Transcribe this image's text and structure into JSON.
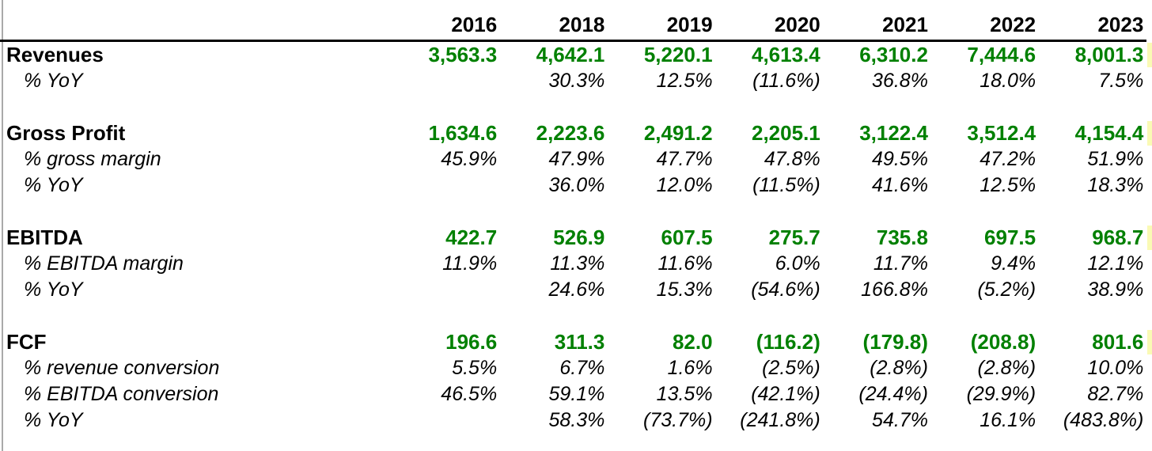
{
  "colors": {
    "value_green": "#008000",
    "highlight_yellow": "#FAFAB4",
    "rule_gray": "#A9A9A9",
    "header_line": "#000000"
  },
  "table": {
    "years": [
      "2016",
      "2018",
      "2019",
      "2020",
      "2021",
      "2022",
      "2023"
    ],
    "rows": [
      {
        "name": "revenues",
        "type": "metric",
        "label": "Revenues",
        "highlight": true,
        "values": [
          "3,563.3",
          "4,642.1",
          "5,220.1",
          "4,613.4",
          "6,310.2",
          "7,444.6",
          "8,001.3"
        ]
      },
      {
        "name": "revenues-yoy",
        "type": "pct",
        "label": "% YoY",
        "values": [
          "",
          "30.3%",
          "12.5%",
          "(11.6%)",
          "36.8%",
          "18.0%",
          "7.5%"
        ]
      },
      {
        "name": "spacer-1",
        "type": "spacer"
      },
      {
        "name": "gross-profit",
        "type": "metric",
        "label": "Gross Profit",
        "highlight": true,
        "values": [
          "1,634.6",
          "2,223.6",
          "2,491.2",
          "2,205.1",
          "3,122.4",
          "3,512.4",
          "4,154.4"
        ]
      },
      {
        "name": "gross-margin",
        "type": "pct",
        "label": "% gross margin",
        "values": [
          "45.9%",
          "47.9%",
          "47.7%",
          "47.8%",
          "49.5%",
          "47.2%",
          "51.9%"
        ]
      },
      {
        "name": "gross-profit-yoy",
        "type": "pct",
        "label": "% YoY",
        "values": [
          "",
          "36.0%",
          "12.0%",
          "(11.5%)",
          "41.6%",
          "12.5%",
          "18.3%"
        ]
      },
      {
        "name": "spacer-2",
        "type": "spacer"
      },
      {
        "name": "ebitda",
        "type": "metric",
        "label": "EBITDA",
        "highlight": true,
        "values": [
          "422.7",
          "526.9",
          "607.5",
          "275.7",
          "735.8",
          "697.5",
          "968.7"
        ]
      },
      {
        "name": "ebitda-margin",
        "type": "pct",
        "label": "% EBITDA margin",
        "values": [
          "11.9%",
          "11.3%",
          "11.6%",
          "6.0%",
          "11.7%",
          "9.4%",
          "12.1%"
        ]
      },
      {
        "name": "ebitda-yoy",
        "type": "pct",
        "label": "% YoY",
        "values": [
          "",
          "24.6%",
          "15.3%",
          "(54.6%)",
          "166.8%",
          "(5.2%)",
          "38.9%"
        ]
      },
      {
        "name": "spacer-3",
        "type": "spacer"
      },
      {
        "name": "fcf",
        "type": "metric",
        "label": "FCF",
        "highlight": true,
        "values": [
          "196.6",
          "311.3",
          "82.0",
          "(116.2)",
          "(179.8)",
          "(208.8)",
          "801.6"
        ]
      },
      {
        "name": "fcf-revenue-conversion",
        "type": "pct",
        "label": "% revenue conversion",
        "values": [
          "5.5%",
          "6.7%",
          "1.6%",
          "(2.5%)",
          "(2.8%)",
          "(2.8%)",
          "10.0%"
        ]
      },
      {
        "name": "fcf-ebitda-conversion",
        "type": "pct",
        "label": "% EBITDA conversion",
        "values": [
          "46.5%",
          "59.1%",
          "13.5%",
          "(42.1%)",
          "(24.4%)",
          "(29.9%)",
          "82.7%"
        ]
      },
      {
        "name": "fcf-yoy",
        "type": "pct",
        "label": "% YoY",
        "values": [
          "",
          "58.3%",
          "(73.7%)",
          "(241.8%)",
          "54.7%",
          "16.1%",
          "(483.8%)"
        ]
      }
    ]
  },
  "chart_data": {
    "type": "table",
    "title": "Financial summary by fiscal year",
    "categories": [
      "2016",
      "2018",
      "2019",
      "2020",
      "2021",
      "2022",
      "2023"
    ],
    "series": [
      {
        "name": "Revenues",
        "values": [
          3563.3,
          4642.1,
          5220.1,
          4613.4,
          6310.2,
          7444.6,
          8001.3
        ]
      },
      {
        "name": "Revenues % YoY",
        "values": [
          null,
          30.3,
          12.5,
          -11.6,
          36.8,
          18.0,
          7.5
        ]
      },
      {
        "name": "Gross Profit",
        "values": [
          1634.6,
          2223.6,
          2491.2,
          2205.1,
          3122.4,
          3512.4,
          4154.4
        ]
      },
      {
        "name": "% gross margin",
        "values": [
          45.9,
          47.9,
          47.7,
          47.8,
          49.5,
          47.2,
          51.9
        ]
      },
      {
        "name": "Gross Profit % YoY",
        "values": [
          null,
          36.0,
          12.0,
          -11.5,
          41.6,
          12.5,
          18.3
        ]
      },
      {
        "name": "EBITDA",
        "values": [
          422.7,
          526.9,
          607.5,
          275.7,
          735.8,
          697.5,
          968.7
        ]
      },
      {
        "name": "% EBITDA margin",
        "values": [
          11.9,
          11.3,
          11.6,
          6.0,
          11.7,
          9.4,
          12.1
        ]
      },
      {
        "name": "EBITDA % YoY",
        "values": [
          null,
          24.6,
          15.3,
          -54.6,
          166.8,
          -5.2,
          38.9
        ]
      },
      {
        "name": "FCF",
        "values": [
          196.6,
          311.3,
          82.0,
          -116.2,
          -179.8,
          -208.8,
          801.6
        ]
      },
      {
        "name": "FCF % revenue conversion",
        "values": [
          5.5,
          6.7,
          1.6,
          -2.5,
          -2.8,
          -2.8,
          10.0
        ]
      },
      {
        "name": "FCF % EBITDA conversion",
        "values": [
          46.5,
          59.1,
          13.5,
          -42.1,
          -24.4,
          -29.9,
          82.7
        ]
      },
      {
        "name": "FCF % YoY",
        "values": [
          null,
          58.3,
          -73.7,
          -241.8,
          54.7,
          16.1,
          -483.8
        ]
      }
    ],
    "layout": {
      "columns_right_aligned": true,
      "grid": "off",
      "negative_format": "parentheses"
    }
  }
}
